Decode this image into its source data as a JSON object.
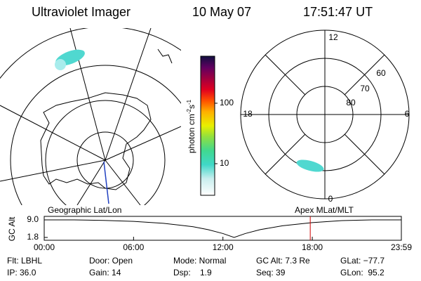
{
  "header": {
    "title": "Ultraviolet Imager",
    "date": "10 May 07",
    "time": "17:51:47 UT"
  },
  "geo_map": {
    "label": "Geographic Lat/Lon"
  },
  "colorbar": {
    "label": [
      "photon cm",
      "-2",
      "s",
      "-1"
    ],
    "log": true,
    "lim": [
      3,
      600
    ],
    "ticks": [
      10,
      100
    ]
  },
  "polar": {
    "label": "Apex MLat/MLT",
    "mlt": [
      "12",
      "6",
      "0",
      "18"
    ],
    "mlat": [
      "80",
      "70",
      "60"
    ]
  },
  "chart_data": {
    "type": "line",
    "ylabel": "GC Alt",
    "x": [
      0,
      2,
      4,
      6,
      8,
      10,
      11,
      12,
      12.75,
      13.5,
      14.5,
      16,
      18,
      20,
      22,
      23.98
    ],
    "values": [
      9.0,
      9.0,
      8.8,
      8.4,
      7.6,
      6.2,
      5.0,
      3.4,
      1.8,
      3.4,
      5.0,
      6.6,
      7.9,
      8.7,
      9.0,
      9.0
    ],
    "color": "#000000",
    "marker_x": 17.863,
    "marker_color": "#cc0000",
    "xlim": [
      0,
      23.98
    ],
    "xticks": [
      {
        "value": 0,
        "label": "00:00"
      },
      {
        "value": 6,
        "label": "06:00"
      },
      {
        "value": 12,
        "label": "12:00"
      },
      {
        "value": 18,
        "label": "18:00"
      },
      {
        "value": 23.98,
        "label": "23:59"
      }
    ],
    "ylim": [
      1.8,
      9.0
    ],
    "yticks": [
      1.8,
      {
        "value": 9.0,
        "label": "9.0"
      }
    ]
  },
  "info": [
    [
      "Flt: LBHL",
      "Door: Open",
      "Mode: Normal",
      "GC Alt: 7.3 Re",
      "GLat: −77.7"
    ],
    [
      "IP: 36.0",
      "Gain: 14",
      "Dsp:    1.9",
      "Seq: 39",
      "GLon:  95.2"
    ]
  ]
}
